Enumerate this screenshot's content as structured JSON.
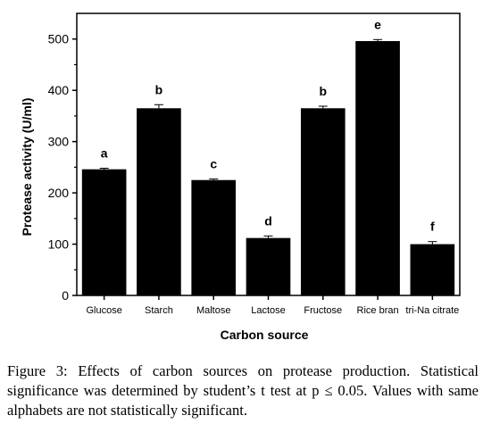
{
  "chart_data": {
    "type": "bar",
    "title": "",
    "xlabel": "Carbon source",
    "ylabel": "Protease activity (U/ml)",
    "ylim": [
      0,
      550
    ],
    "yticks": [
      0,
      100,
      200,
      300,
      400,
      500
    ],
    "grid": false,
    "legend": "none",
    "bar_color": "#000000",
    "categories": [
      "Glucose",
      "Starch",
      "Maltose",
      "Lactose",
      "Fructose",
      "Rice bran",
      "tri-Na citrate"
    ],
    "values": [
      246,
      365,
      225,
      112,
      365,
      496,
      100
    ],
    "errors": [
      2,
      7,
      2,
      4,
      4,
      3,
      5
    ],
    "significance": [
      "a",
      "b",
      "c",
      "d",
      "b",
      "e",
      "f"
    ]
  },
  "caption": {
    "label": "Figure 3:",
    "text": " Effects of carbon sources on protease production. Statistical significance was determined by student’s t test at p ≤ 0.05. Values with same alphabets are not statistically significant."
  }
}
